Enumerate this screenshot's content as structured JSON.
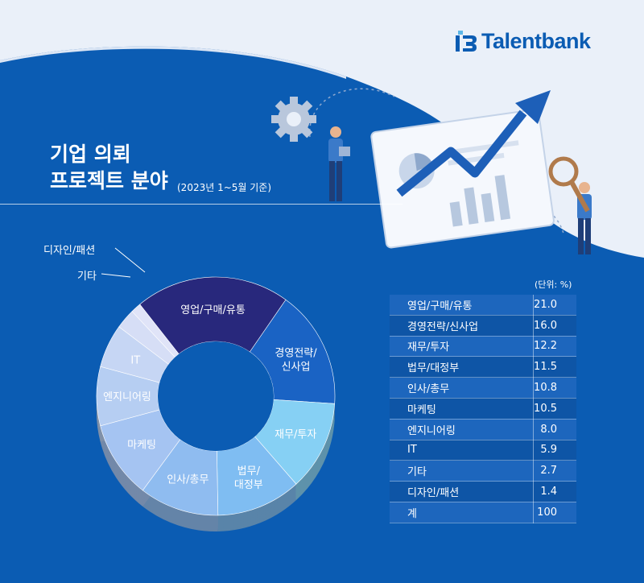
{
  "brand": {
    "name": "Talentbank"
  },
  "header": {
    "title_line1": "기업 의뢰",
    "title_line2": "프로젝트 분야",
    "subtitle": "(2023년 1~5월 기준)"
  },
  "table": {
    "unit": "(단위: %)",
    "rows": [
      {
        "label": "영업/구매/유통",
        "value": "21.0"
      },
      {
        "label": "경영전략/신사업",
        "value": "16.0"
      },
      {
        "label": "재무/투자",
        "value": "12.2"
      },
      {
        "label": "법무/대정부",
        "value": "11.5"
      },
      {
        "label": "인사/총무",
        "value": "10.8"
      },
      {
        "label": "마케팅",
        "value": "10.5"
      },
      {
        "label": "엔지니어링",
        "value": "8.0"
      },
      {
        "label": "IT",
        "value": "5.9"
      },
      {
        "label": "기타",
        "value": "2.7"
      },
      {
        "label": "디자인/패션",
        "value": "1.4"
      },
      {
        "label": "계",
        "value": "100"
      }
    ]
  },
  "chart_data": {
    "type": "pie",
    "unit": "%",
    "categories": [
      "영업/구매/유통",
      "경영전략/신사업",
      "재무/투자",
      "법무/대정부",
      "인사/총무",
      "마케팅",
      "엔지니어링",
      "IT",
      "기타",
      "디자인/패션"
    ],
    "slice_labels": [
      "영업/구매/유통",
      "경영전략/\n신사업",
      "재무/투자",
      "법무/\n대정부",
      "인사/총무",
      "마케팅",
      "엔지니어링",
      "IT",
      "기타",
      "디자인/패션"
    ],
    "values": [
      21.0,
      16.0,
      12.2,
      11.5,
      10.8,
      10.5,
      8.0,
      5.9,
      2.7,
      1.4
    ],
    "total": 100,
    "colors": [
      "#28287c",
      "#1a63c4",
      "#86d0f4",
      "#7fbdf2",
      "#8fbcf0",
      "#a5c4f2",
      "#b6cef2",
      "#c6d6f4",
      "#d6def6",
      "#e0e4f8"
    ],
    "outside_labels": [
      "기타",
      "디자인/패션"
    ]
  }
}
